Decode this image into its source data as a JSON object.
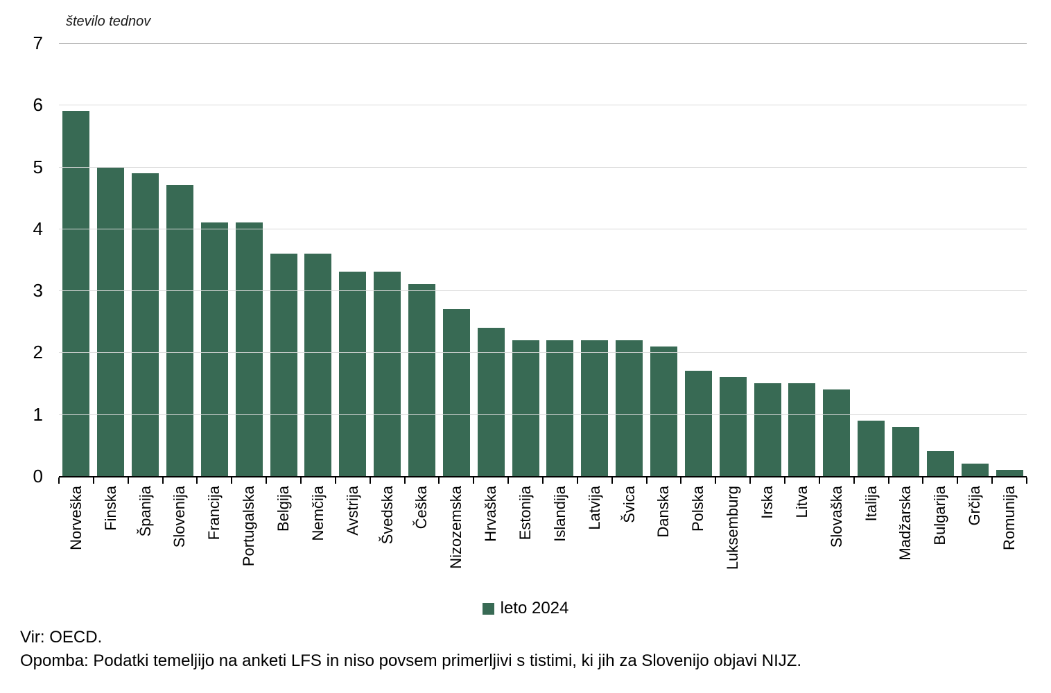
{
  "chart": {
    "axis_title": "število tednov",
    "legend_label": "leto 2024",
    "source": "Vir: OECD.",
    "note": "Opomba: Podatki temeljijo na anketi LFS in niso povsem primerljivi s tistimi, ki jih za Slovenijo objavi NIJZ."
  },
  "colors": {
    "bar": "#386a54",
    "gridline": "#d9d9d9",
    "gridline_top": "#a6a6a6",
    "axis": "#000000"
  },
  "chart_data": {
    "type": "bar",
    "title": "",
    "xlabel": "",
    "ylabel": "število tednov",
    "ylim": [
      0,
      7
    ],
    "yticks": [
      0,
      1,
      2,
      3,
      4,
      5,
      6,
      7
    ],
    "grid": true,
    "legend_entries": [
      "leto 2024"
    ],
    "legend_position": "bottom-center",
    "categories": [
      "Norveška",
      "Finska",
      "Španija",
      "Slovenija",
      "Francija",
      "Portugalska",
      "Belgija",
      "Nemčija",
      "Avstrija",
      "Švedska",
      "Češka",
      "Nizozemska",
      "Hrvaška",
      "Estonija",
      "Islandija",
      "Latvija",
      "Švica",
      "Danska",
      "Polska",
      "Luksemburg",
      "Irska",
      "Litva",
      "Slovaška",
      "Italija",
      "Madžarska",
      "Bulgarija",
      "Grčija",
      "Romunija"
    ],
    "values": [
      5.9,
      5.0,
      4.9,
      4.7,
      4.1,
      4.1,
      3.6,
      3.6,
      3.3,
      3.3,
      3.1,
      2.7,
      2.4,
      2.2,
      2.2,
      2.2,
      2.2,
      2.1,
      1.7,
      1.6,
      1.5,
      1.5,
      1.4,
      0.9,
      0.8,
      0.4,
      0.2,
      0.1
    ]
  }
}
